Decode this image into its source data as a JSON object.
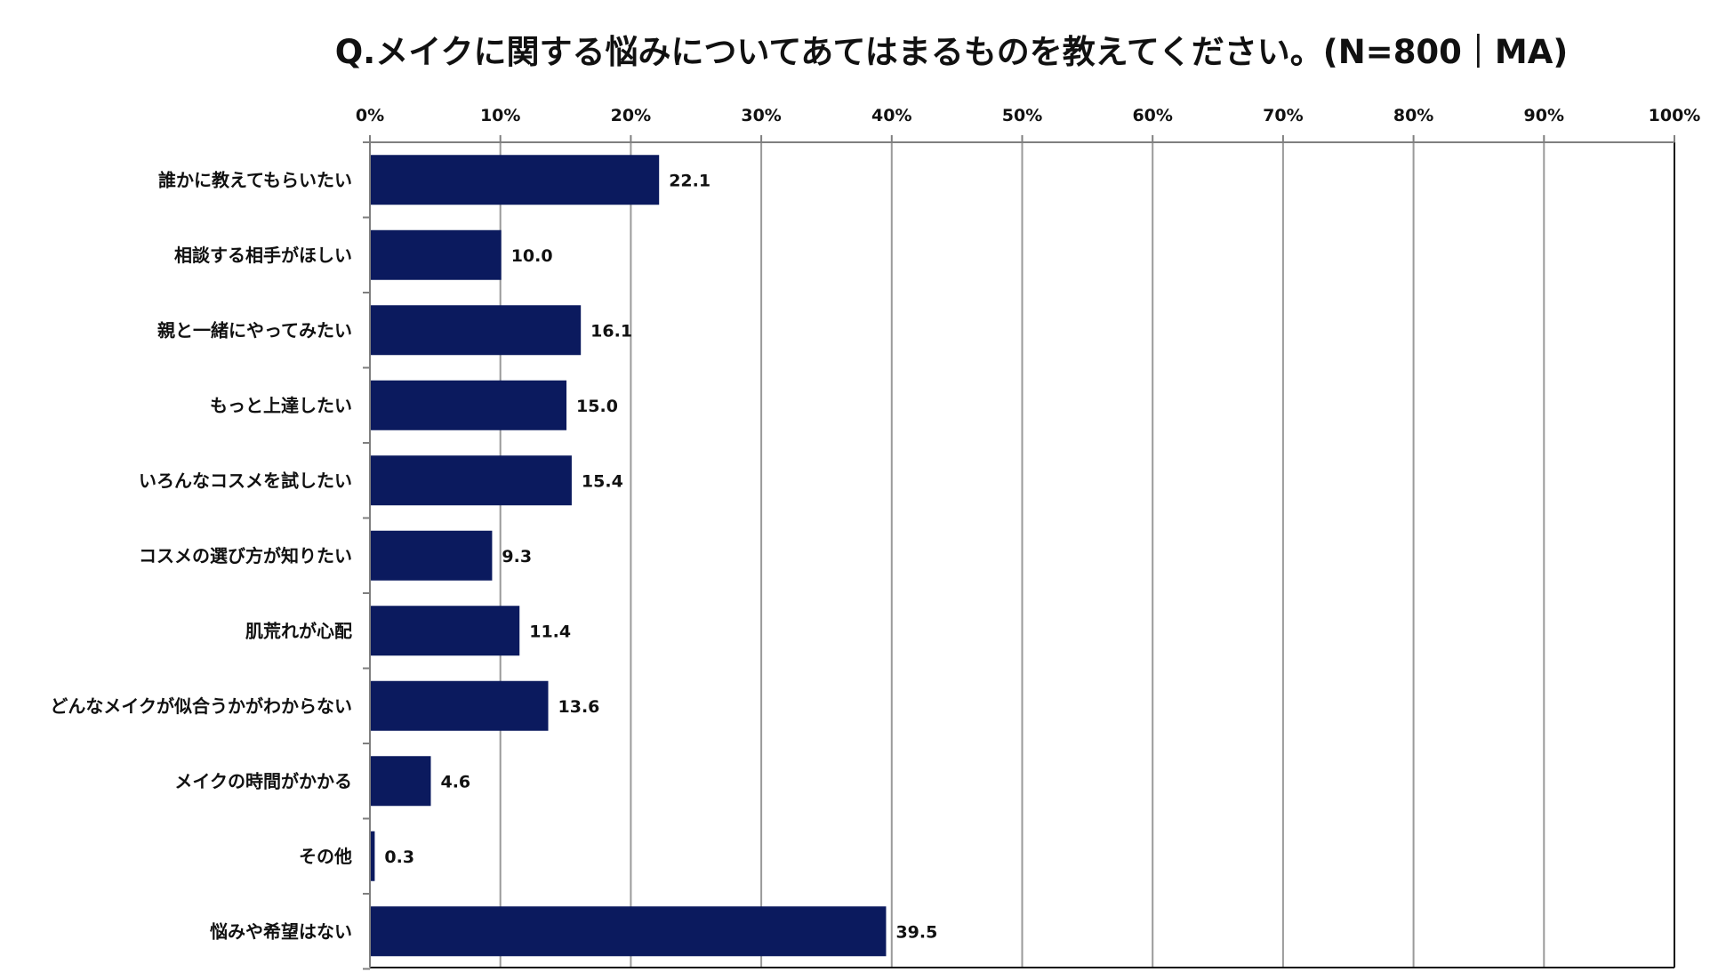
{
  "chart_data": {
    "type": "bar",
    "orientation": "horizontal",
    "title": "Q.メイクに関する悩みについてあてはまるものを教えてください。(N=800｜MA)",
    "xlabel": "",
    "ylabel": "",
    "xlim": [
      0,
      100
    ],
    "x_ticks": [
      "0%",
      "10%",
      "20%",
      "30%",
      "40%",
      "50%",
      "60%",
      "70%",
      "80%",
      "90%",
      "100%"
    ],
    "x_axis_position": "top",
    "grid": true,
    "legend": "none",
    "categories": [
      "誰かに教えてもらいたい",
      "相談する相手がほしい",
      "親と一緒にやってみたい",
      "もっと上達したい",
      "いろんなコスメを試したい",
      "コスメの選び方が知りたい",
      "肌荒れが心配",
      "どんなメイクが似合うかがわからない",
      "メイクの時間がかかる",
      "その他",
      "悩みや希望はない"
    ],
    "values": [
      22.1,
      10.0,
      16.1,
      15.0,
      15.4,
      9.3,
      11.4,
      13.6,
      4.6,
      0.3,
      39.5
    ],
    "value_labels": [
      "22.1",
      "10.0",
      "16.1",
      "15.0",
      "15.4",
      "9.3",
      "11.4",
      "13.6",
      "4.6",
      "0.3",
      "39.5"
    ],
    "colors": {
      "bar": "#0b1a5e",
      "grid": "#9a9a9a",
      "axis": "#7f7f7f",
      "frame": "#111111"
    }
  }
}
